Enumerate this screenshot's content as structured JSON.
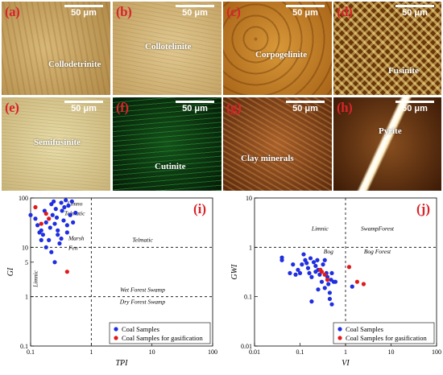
{
  "micrographs": [
    {
      "label": "(a)",
      "name": "Collodetrinite",
      "scale": "50 μm",
      "bg": "#c9a660"
    },
    {
      "label": "(b)",
      "name": "Collotelinite",
      "scale": "50 μm",
      "bg": "#d4b878"
    },
    {
      "label": "(c)",
      "name": "Corpogelinite",
      "scale": "50 μm",
      "bg": "#c7842a"
    },
    {
      "label": "(d)",
      "name": "Fusinite",
      "scale": "50 μm",
      "bg": "#b86a10"
    },
    {
      "label": "(e)",
      "name": "Semifusinite",
      "scale": "50 μm",
      "bg": "#dccb92"
    },
    {
      "label": "(f)",
      "name": "Cutinite",
      "scale": "50 μm",
      "bg": "#0d3a10"
    },
    {
      "label": "(g)",
      "name": "Clay minerals",
      "scale": "50 μm",
      "bg": "#8a4a1c"
    },
    {
      "label": "(h)",
      "name": "Pyrite",
      "scale": "50 μm",
      "bg": "#6a3a12"
    }
  ],
  "chart_data": [
    {
      "type": "scatter",
      "panel_label": "(i)",
      "xlabel": "TPI",
      "ylabel": "GI",
      "xscale": "log",
      "yscale": "log",
      "xlim": [
        0.1,
        100
      ],
      "ylim": [
        0.1,
        100
      ],
      "xticks": [
        "0.1",
        "1",
        "10",
        "100"
      ],
      "yticks": [
        "0.1",
        "1",
        "5",
        "10",
        "100"
      ],
      "annotations": [
        "Limno",
        "Telmatic",
        "Marsh",
        "Fen",
        "Telmatic",
        "Limnic",
        "Wet Forest Swamp",
        "Dry Forest Swamp"
      ],
      "legend_position": "bottom-right",
      "series": [
        {
          "name": "Coal Samples",
          "color": "#1f2ee0",
          "points": [
            [
              0.1,
              45
            ],
            [
              0.12,
              38
            ],
            [
              0.13,
              28
            ],
            [
              0.14,
              20
            ],
            [
              0.15,
              22
            ],
            [
              0.16,
              18
            ],
            [
              0.17,
              55
            ],
            [
              0.18,
              32
            ],
            [
              0.2,
              14
            ],
            [
              0.21,
              25
            ],
            [
              0.22,
              75
            ],
            [
              0.23,
              45
            ],
            [
              0.24,
              85
            ],
            [
              0.25,
              30
            ],
            [
              0.26,
              60
            ],
            [
              0.27,
              40
            ],
            [
              0.28,
              22
            ],
            [
              0.3,
              12
            ],
            [
              0.32,
              80
            ],
            [
              0.33,
              55
            ],
            [
              0.35,
              35
            ],
            [
              0.36,
              65
            ],
            [
              0.38,
              90
            ],
            [
              0.4,
              28
            ],
            [
              0.42,
              70
            ],
            [
              0.45,
              45
            ],
            [
              0.48,
              85
            ],
            [
              0.5,
              32
            ],
            [
              0.55,
              50
            ],
            [
              0.18,
              10
            ],
            [
              0.22,
              8
            ],
            [
              0.25,
              5
            ],
            [
              0.28,
              18
            ],
            [
              0.32,
              15
            ],
            [
              0.4,
              20
            ],
            [
              0.15,
              14
            ]
          ]
        },
        {
          "name": "Coal Samples for gasification",
          "color": "#e01a1a",
          "points": [
            [
              0.12,
              65
            ],
            [
              0.15,
              30
            ],
            [
              0.18,
              48
            ],
            [
              0.2,
              38
            ],
            [
              0.4,
              3.2
            ]
          ]
        }
      ]
    },
    {
      "type": "scatter",
      "panel_label": "(j)",
      "xlabel": "VI",
      "ylabel": "GWI",
      "xscale": "log",
      "yscale": "log",
      "xlim": [
        0.01,
        100
      ],
      "ylim": [
        0.01,
        10
      ],
      "xticks": [
        "0.01",
        "0.1",
        "1",
        "10",
        "100"
      ],
      "yticks": [
        "0.01",
        "0.1",
        "1",
        "10"
      ],
      "annotations": [
        "Limnic",
        "SwampForest",
        "Bog",
        "Bog Forest"
      ],
      "legend_position": "bottom-right",
      "series": [
        {
          "name": "Coal Samples",
          "color": "#1f2ee0",
          "points": [
            [
              0.04,
              0.55
            ],
            [
              0.04,
              0.62
            ],
            [
              0.06,
              0.3
            ],
            [
              0.07,
              0.45
            ],
            [
              0.08,
              0.28
            ],
            [
              0.09,
              0.35
            ],
            [
              0.1,
              0.3
            ],
            [
              0.11,
              0.45
            ],
            [
              0.12,
              0.72
            ],
            [
              0.13,
              0.55
            ],
            [
              0.14,
              0.48
            ],
            [
              0.15,
              0.38
            ],
            [
              0.16,
              0.3
            ],
            [
              0.17,
              0.6
            ],
            [
              0.18,
              0.25
            ],
            [
              0.2,
              0.5
            ],
            [
              0.22,
              0.42
            ],
            [
              0.24,
              0.55
            ],
            [
              0.25,
              0.35
            ],
            [
              0.27,
              0.28
            ],
            [
              0.3,
              0.2
            ],
            [
              0.32,
              0.45
            ],
            [
              0.35,
              0.55
            ],
            [
              0.38,
              0.3
            ],
            [
              0.4,
              0.25
            ],
            [
              0.42,
              0.18
            ],
            [
              0.45,
              0.12
            ],
            [
              0.48,
              0.22
            ],
            [
              0.5,
              0.3
            ],
            [
              0.55,
              0.2
            ],
            [
              0.18,
              0.08
            ],
            [
              0.25,
              0.14
            ],
            [
              0.35,
              0.15
            ],
            [
              0.45,
              0.09
            ],
            [
              0.5,
              0.07
            ],
            [
              0.6,
              0.2
            ],
            [
              1.4,
              0.16
            ],
            [
              0.22,
              0.32
            ]
          ]
        },
        {
          "name": "Coal Samples for gasification",
          "color": "#e01a1a",
          "points": [
            [
              0.3,
              0.32
            ],
            [
              0.35,
              0.28
            ],
            [
              0.4,
              0.22
            ],
            [
              1.2,
              0.4
            ],
            [
              1.8,
              0.2
            ],
            [
              2.5,
              0.18
            ],
            [
              0.28,
              0.35
            ]
          ]
        }
      ]
    }
  ]
}
